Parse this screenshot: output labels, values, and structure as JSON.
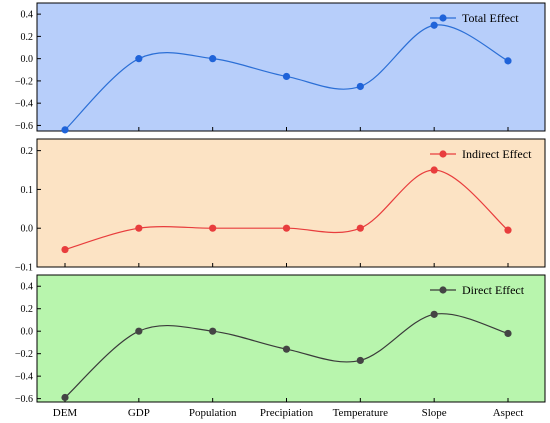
{
  "chart_data": [
    {
      "type": "line",
      "categories": [
        "DEM",
        "GDP",
        "Population",
        "Precipiation",
        "Temperature",
        "Slope",
        "Aspect"
      ],
      "series": [
        {
          "name": "Total  Effect",
          "values": [
            -0.64,
            0.0,
            0.0,
            -0.16,
            -0.25,
            0.3,
            -0.02
          ]
        }
      ],
      "ylim": [
        -0.65,
        0.5
      ],
      "yticks": [
        0.4,
        0.2,
        0.0,
        -0.2,
        -0.4,
        -0.6
      ],
      "ytick_labels": [
        "0.4",
        "0.2",
        "0.0",
        "−0.2",
        "−0.4",
        "−0.6"
      ],
      "background": "#b7cefa",
      "line_color": "#2b6fd6",
      "marker_color": "#1f63d9",
      "legend": "top-right"
    },
    {
      "type": "line",
      "categories": [
        "DEM",
        "GDP",
        "Population",
        "Precipiation",
        "Temperature",
        "Slope",
        "Aspect"
      ],
      "series": [
        {
          "name": "Indirect  Effect",
          "values": [
            -0.055,
            0.0,
            0.0,
            0.0,
            0.0,
            0.15,
            -0.005
          ]
        }
      ],
      "ylim": [
        -0.1,
        0.23
      ],
      "yticks": [
        0.2,
        0.1,
        0.0,
        -0.1
      ],
      "ytick_labels": [
        "0.2",
        "0.1",
        "0.0",
        "−0.1"
      ],
      "background": "#fce3c4",
      "line_color": "#e83d3d",
      "marker_color": "#e83d3d",
      "legend": "top-right"
    },
    {
      "type": "line",
      "categories": [
        "DEM",
        "GDP",
        "Population",
        "Precipiation",
        "Temperature",
        "Slope",
        "Aspect"
      ],
      "series": [
        {
          "name": "Direct  Effect",
          "values": [
            -0.59,
            0.0,
            0.0,
            -0.16,
            -0.26,
            0.15,
            -0.02
          ]
        }
      ],
      "ylim": [
        -0.63,
        0.5
      ],
      "yticks": [
        0.4,
        0.2,
        0.0,
        -0.2,
        -0.4,
        -0.6
      ],
      "ytick_labels": [
        "0.4",
        "0.2",
        "0.0",
        "−0.2",
        "−0.4",
        "−0.6"
      ],
      "background": "#b8f5ad",
      "line_color": "#3a3a3a",
      "marker_color": "#444444",
      "legend": "top-right"
    }
  ]
}
